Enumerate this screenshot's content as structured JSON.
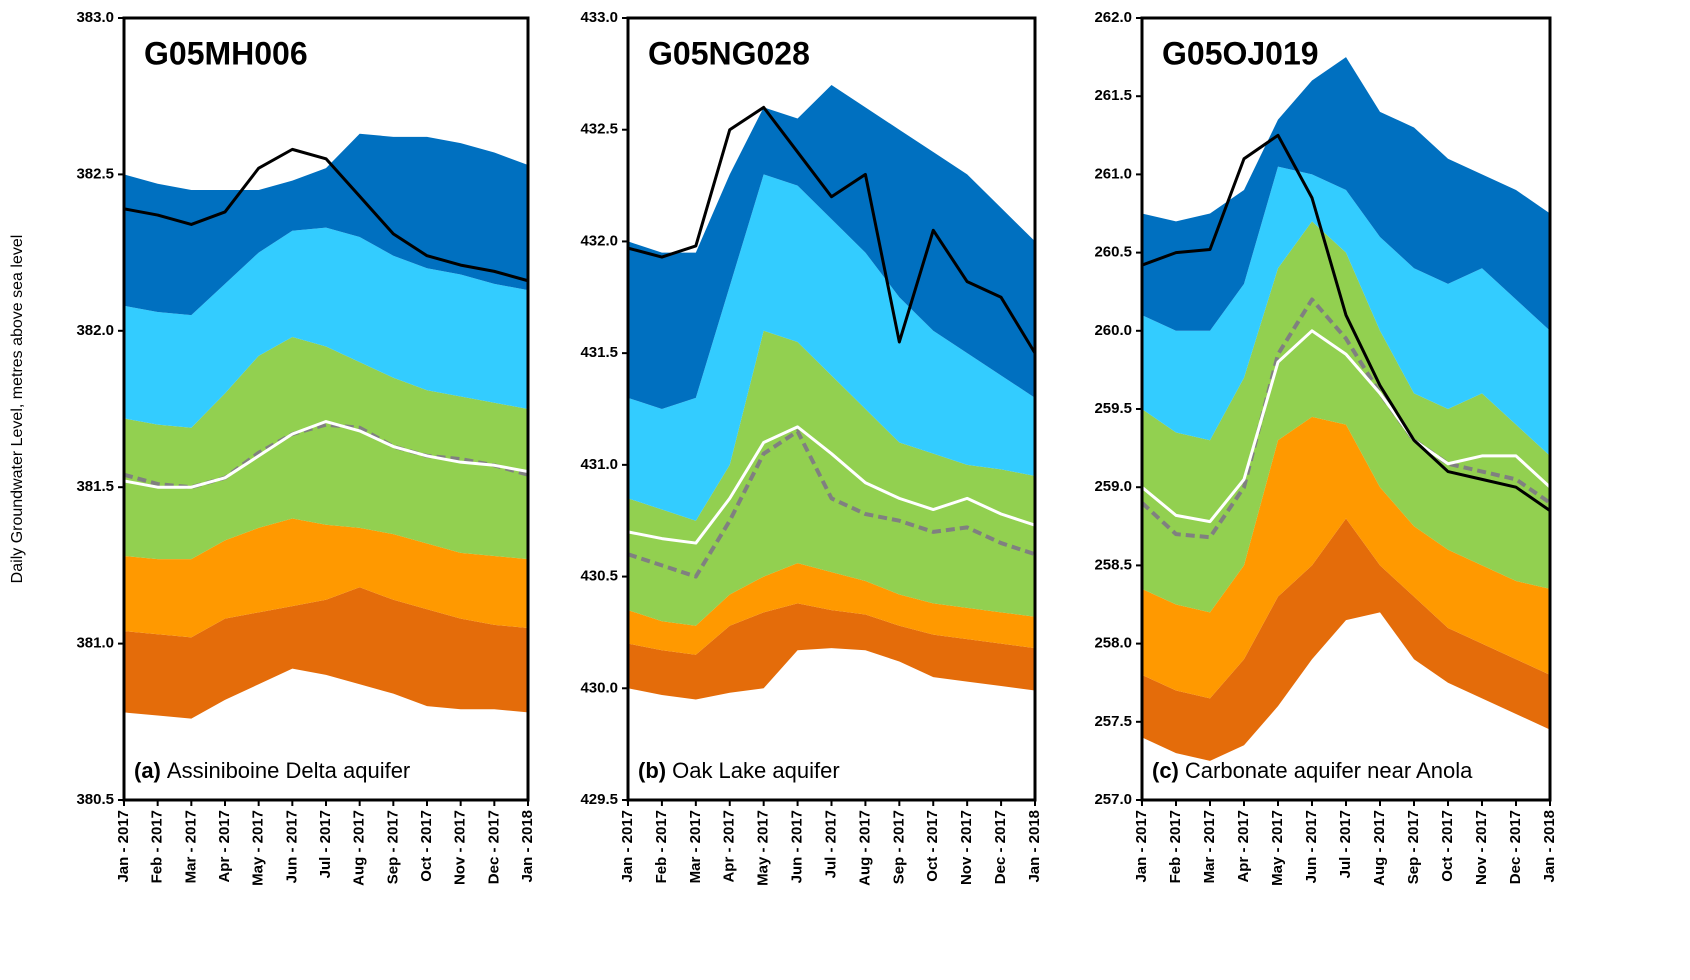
{
  "chart_data": [
    {
      "type": "area",
      "title": "G05MH006",
      "panel_label": "(a)",
      "caption": "Assiniboine Delta aquifer",
      "ylabel": "Daily Groundwater Level, metres above sea level",
      "categories": [
        "Jan - 2017",
        "Feb - 2017",
        "Mar - 2017",
        "Apr - 2017",
        "May - 2017",
        "Jun - 2017",
        "Jul - 2017",
        "Aug - 2017",
        "Sep - 2017",
        "Oct - 2017",
        "Nov - 2017",
        "Dec - 2017",
        "Jan - 2018"
      ],
      "ylim": [
        380.5,
        383
      ],
      "yticks": [
        {
          "value": 380.5,
          "label": "380.5"
        },
        {
          "value": 381,
          "label": "381.0"
        },
        {
          "value": 381.5,
          "label": "381.5"
        },
        {
          "value": 382,
          "label": "382.0"
        },
        {
          "value": 382.5,
          "label": "382.5"
        },
        {
          "value": 383,
          "label": "383.0"
        }
      ],
      "levels": [
        {
          "values": [
            380.78,
            380.77,
            380.76,
            380.82,
            380.87,
            380.92,
            380.9,
            380.87,
            380.84,
            380.8,
            380.79,
            380.79,
            380.78
          ]
        },
        {
          "color": "#e46c0a",
          "values": [
            381.04,
            381.03,
            381.02,
            381.08,
            381.1,
            381.12,
            381.14,
            381.18,
            381.14,
            381.11,
            381.08,
            381.06,
            381.05
          ]
        },
        {
          "color": "#ff9900",
          "values": [
            381.28,
            381.27,
            381.27,
            381.33,
            381.37,
            381.4,
            381.38,
            381.37,
            381.35,
            381.32,
            381.29,
            381.28,
            381.27
          ]
        },
        {
          "color": "#92d050",
          "values": [
            381.72,
            381.7,
            381.69,
            381.8,
            381.92,
            381.98,
            381.95,
            381.9,
            381.85,
            381.81,
            381.79,
            381.77,
            381.75
          ]
        },
        {
          "color": "#33ccff",
          "values": [
            382.08,
            382.06,
            382.05,
            382.15,
            382.25,
            382.32,
            382.33,
            382.3,
            382.24,
            382.2,
            382.18,
            382.15,
            382.13
          ]
        },
        {
          "color": "#0070c0",
          "values": [
            382.5,
            382.47,
            382.45,
            382.45,
            382.45,
            382.48,
            382.52,
            382.63,
            382.62,
            382.62,
            382.6,
            382.57,
            382.53
          ]
        }
      ],
      "series": [
        {
          "color": "#808080",
          "style": "dashed",
          "values": [
            381.54,
            381.51,
            381.5,
            381.53,
            381.61,
            381.67,
            381.7,
            381.69,
            381.63,
            381.6,
            381.59,
            381.57,
            381.54
          ]
        },
        {
          "color": "#ffffff",
          "style": "solid",
          "values": [
            381.52,
            381.5,
            381.5,
            381.53,
            381.6,
            381.67,
            381.71,
            381.68,
            381.63,
            381.6,
            381.58,
            381.57,
            381.55
          ]
        },
        {
          "color": "#000000",
          "style": "solid",
          "values": [
            382.39,
            382.37,
            382.34,
            382.38,
            382.52,
            382.58,
            382.55,
            382.43,
            382.31,
            382.24,
            382.21,
            382.19,
            382.16
          ]
        }
      ]
    },
    {
      "type": "area",
      "title": "G05NG028",
      "panel_label": "(b)",
      "caption": "Oak Lake aquifer",
      "categories": [
        "Jan - 2017",
        "Feb - 2017",
        "Mar - 2017",
        "Apr - 2017",
        "May - 2017",
        "Jun - 2017",
        "Jul - 2017",
        "Aug - 2017",
        "Sep - 2017",
        "Oct - 2017",
        "Nov - 2017",
        "Dec - 2017",
        "Jan - 2018"
      ],
      "ylim": [
        429.5,
        433
      ],
      "yticks": [
        {
          "value": 429.5,
          "label": "429.5"
        },
        {
          "value": 430,
          "label": "430.0"
        },
        {
          "value": 430.5,
          "label": "430.5"
        },
        {
          "value": 431,
          "label": "431.0"
        },
        {
          "value": 431.5,
          "label": "431.5"
        },
        {
          "value": 432,
          "label": "432.0"
        },
        {
          "value": 432.5,
          "label": "432.5"
        },
        {
          "value": 433,
          "label": "433.0"
        }
      ],
      "levels": [
        {
          "values": [
            430,
            429.97,
            429.95,
            429.98,
            430,
            430.17,
            430.18,
            430.17,
            430.12,
            430.05,
            430.03,
            430.01,
            429.99
          ]
        },
        {
          "color": "#e46c0a",
          "values": [
            430.2,
            430.17,
            430.15,
            430.28,
            430.34,
            430.38,
            430.35,
            430.33,
            430.28,
            430.24,
            430.22,
            430.2,
            430.18
          ]
        },
        {
          "color": "#ff9900",
          "values": [
            430.35,
            430.3,
            430.28,
            430.42,
            430.5,
            430.56,
            430.52,
            430.48,
            430.42,
            430.38,
            430.36,
            430.34,
            430.32
          ]
        },
        {
          "color": "#92d050",
          "values": [
            430.85,
            430.8,
            430.75,
            431,
            431.6,
            431.55,
            431.4,
            431.25,
            431.1,
            431.05,
            431,
            430.98,
            430.95
          ]
        },
        {
          "color": "#33ccff",
          "values": [
            431.3,
            431.25,
            431.3,
            431.8,
            432.3,
            432.25,
            432.1,
            431.95,
            431.75,
            431.6,
            431.5,
            431.4,
            431.3
          ]
        },
        {
          "color": "#0070c0",
          "values": [
            432,
            431.95,
            431.95,
            432.3,
            432.6,
            432.55,
            432.7,
            432.6,
            432.5,
            432.4,
            432.3,
            432.15,
            432
          ]
        }
      ],
      "series": [
        {
          "color": "#808080",
          "style": "dashed",
          "values": [
            430.6,
            430.55,
            430.5,
            430.75,
            431.05,
            431.15,
            430.85,
            430.78,
            430.75,
            430.7,
            430.72,
            430.65,
            430.6
          ]
        },
        {
          "color": "#ffffff",
          "style": "solid",
          "values": [
            430.7,
            430.67,
            430.65,
            430.85,
            431.1,
            431.17,
            431.05,
            430.92,
            430.85,
            430.8,
            430.85,
            430.78,
            430.73
          ]
        },
        {
          "color": "#000000",
          "style": "solid",
          "values": [
            431.97,
            431.93,
            431.98,
            432.5,
            432.6,
            432.4,
            432.2,
            432.3,
            431.55,
            432.05,
            431.82,
            431.75,
            431.5
          ]
        }
      ]
    },
    {
      "type": "area",
      "title": "G05OJ019",
      "panel_label": "(c)",
      "caption": "Carbonate aquifer near Anola",
      "categories": [
        "Jan - 2017",
        "Feb - 2017",
        "Mar - 2017",
        "Apr - 2017",
        "May - 2017",
        "Jun - 2017",
        "Jul - 2017",
        "Aug - 2017",
        "Sep - 2017",
        "Oct - 2017",
        "Nov - 2017",
        "Dec - 2017",
        "Jan - 2018"
      ],
      "ylim": [
        257,
        262
      ],
      "yticks": [
        {
          "value": 257,
          "label": "257.0"
        },
        {
          "value": 257.5,
          "label": "257.5"
        },
        {
          "value": 258,
          "label": "258.0"
        },
        {
          "value": 258.5,
          "label": "258.5"
        },
        {
          "value": 259,
          "label": "259.0"
        },
        {
          "value": 259.5,
          "label": "259.5"
        },
        {
          "value": 260,
          "label": "260.0"
        },
        {
          "value": 260.5,
          "label": "260.5"
        },
        {
          "value": 261,
          "label": "261.0"
        },
        {
          "value": 261.5,
          "label": "261.5"
        },
        {
          "value": 262,
          "label": "262.0"
        }
      ],
      "levels": [
        {
          "values": [
            257.4,
            257.3,
            257.25,
            257.35,
            257.6,
            257.9,
            258.15,
            258.2,
            257.9,
            257.75,
            257.65,
            257.55,
            257.45
          ]
        },
        {
          "color": "#e46c0a",
          "values": [
            257.8,
            257.7,
            257.65,
            257.9,
            258.3,
            258.5,
            258.8,
            258.5,
            258.3,
            258.1,
            258,
            257.9,
            257.8
          ]
        },
        {
          "color": "#ff9900",
          "values": [
            258.35,
            258.25,
            258.2,
            258.5,
            259.3,
            259.45,
            259.4,
            259,
            258.75,
            258.6,
            258.5,
            258.4,
            258.35
          ]
        },
        {
          "color": "#92d050",
          "values": [
            259.5,
            259.35,
            259.3,
            259.7,
            260.4,
            260.7,
            260.5,
            260,
            259.6,
            259.5,
            259.6,
            259.4,
            259.2
          ]
        },
        {
          "color": "#33ccff",
          "values": [
            260.1,
            260,
            260,
            260.3,
            261.05,
            261,
            260.9,
            260.6,
            260.4,
            260.3,
            260.4,
            260.2,
            260
          ]
        },
        {
          "color": "#0070c0",
          "values": [
            260.75,
            260.7,
            260.75,
            260.9,
            261.35,
            261.6,
            261.75,
            261.4,
            261.3,
            261.1,
            261,
            260.9,
            260.75
          ]
        }
      ],
      "series": [
        {
          "color": "#808080",
          "style": "dashed",
          "values": [
            258.9,
            258.7,
            258.68,
            259,
            259.85,
            260.2,
            259.95,
            259.6,
            259.3,
            259.15,
            259.1,
            259.05,
            258.9
          ]
        },
        {
          "color": "#ffffff",
          "style": "solid",
          "values": [
            259,
            258.82,
            258.78,
            259.05,
            259.8,
            260,
            259.85,
            259.6,
            259.3,
            259.15,
            259.2,
            259.2,
            259
          ]
        },
        {
          "color": "#000000",
          "style": "solid",
          "values": [
            260.42,
            260.5,
            260.52,
            261.1,
            261.25,
            260.85,
            260.1,
            259.65,
            259.3,
            259.1,
            259.05,
            259,
            258.85
          ]
        }
      ]
    }
  ]
}
